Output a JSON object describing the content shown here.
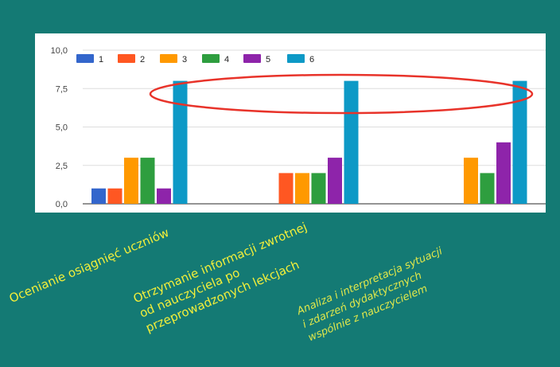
{
  "chart_data": {
    "type": "bar",
    "categories": [
      "Ocenianie osiągnięć uczniów",
      "Otrzymanie informacji zwrotnej od nauczyciela po przeprowadzonych lekcjach",
      "Analiza i interpretacja sytuacji i zdarzeń dydaktycznych wspólnie z nauczycielem"
    ],
    "category_lines": [
      [
        "Ocenianie osiągnięć uczniów"
      ],
      [
        "Otrzymanie informacji zwrotnej",
        "od nauczyciela po",
        "przeprowadzonych lekcjach"
      ],
      [
        "Analiza i interpretacja sytuacji",
        "i zdarzeń dydaktycznych",
        "wspólnie z nauczycielem"
      ]
    ],
    "series": [
      {
        "name": "1",
        "color": "#3366cc",
        "values": [
          1,
          0,
          0
        ]
      },
      {
        "name": "2",
        "color": "#ff5722",
        "values": [
          1,
          2,
          0
        ]
      },
      {
        "name": "3",
        "color": "#ff9900",
        "values": [
          3,
          2,
          3
        ]
      },
      {
        "name": "4",
        "color": "#2e9e3f",
        "values": [
          3,
          2,
          2
        ]
      },
      {
        "name": "5",
        "color": "#8e24aa",
        "values": [
          1,
          3,
          4
        ]
      },
      {
        "name": "6",
        "color": "#0d99c6",
        "values": [
          8,
          8,
          8
        ]
      }
    ],
    "ylim": [
      0,
      10
    ],
    "yticks": [
      "0,0",
      "2,5",
      "5,0",
      "7,5",
      "10,0"
    ],
    "grid": true,
    "legend_position": "top-left",
    "annotation": "red ellipse around the 8,0 bars of series 6"
  }
}
